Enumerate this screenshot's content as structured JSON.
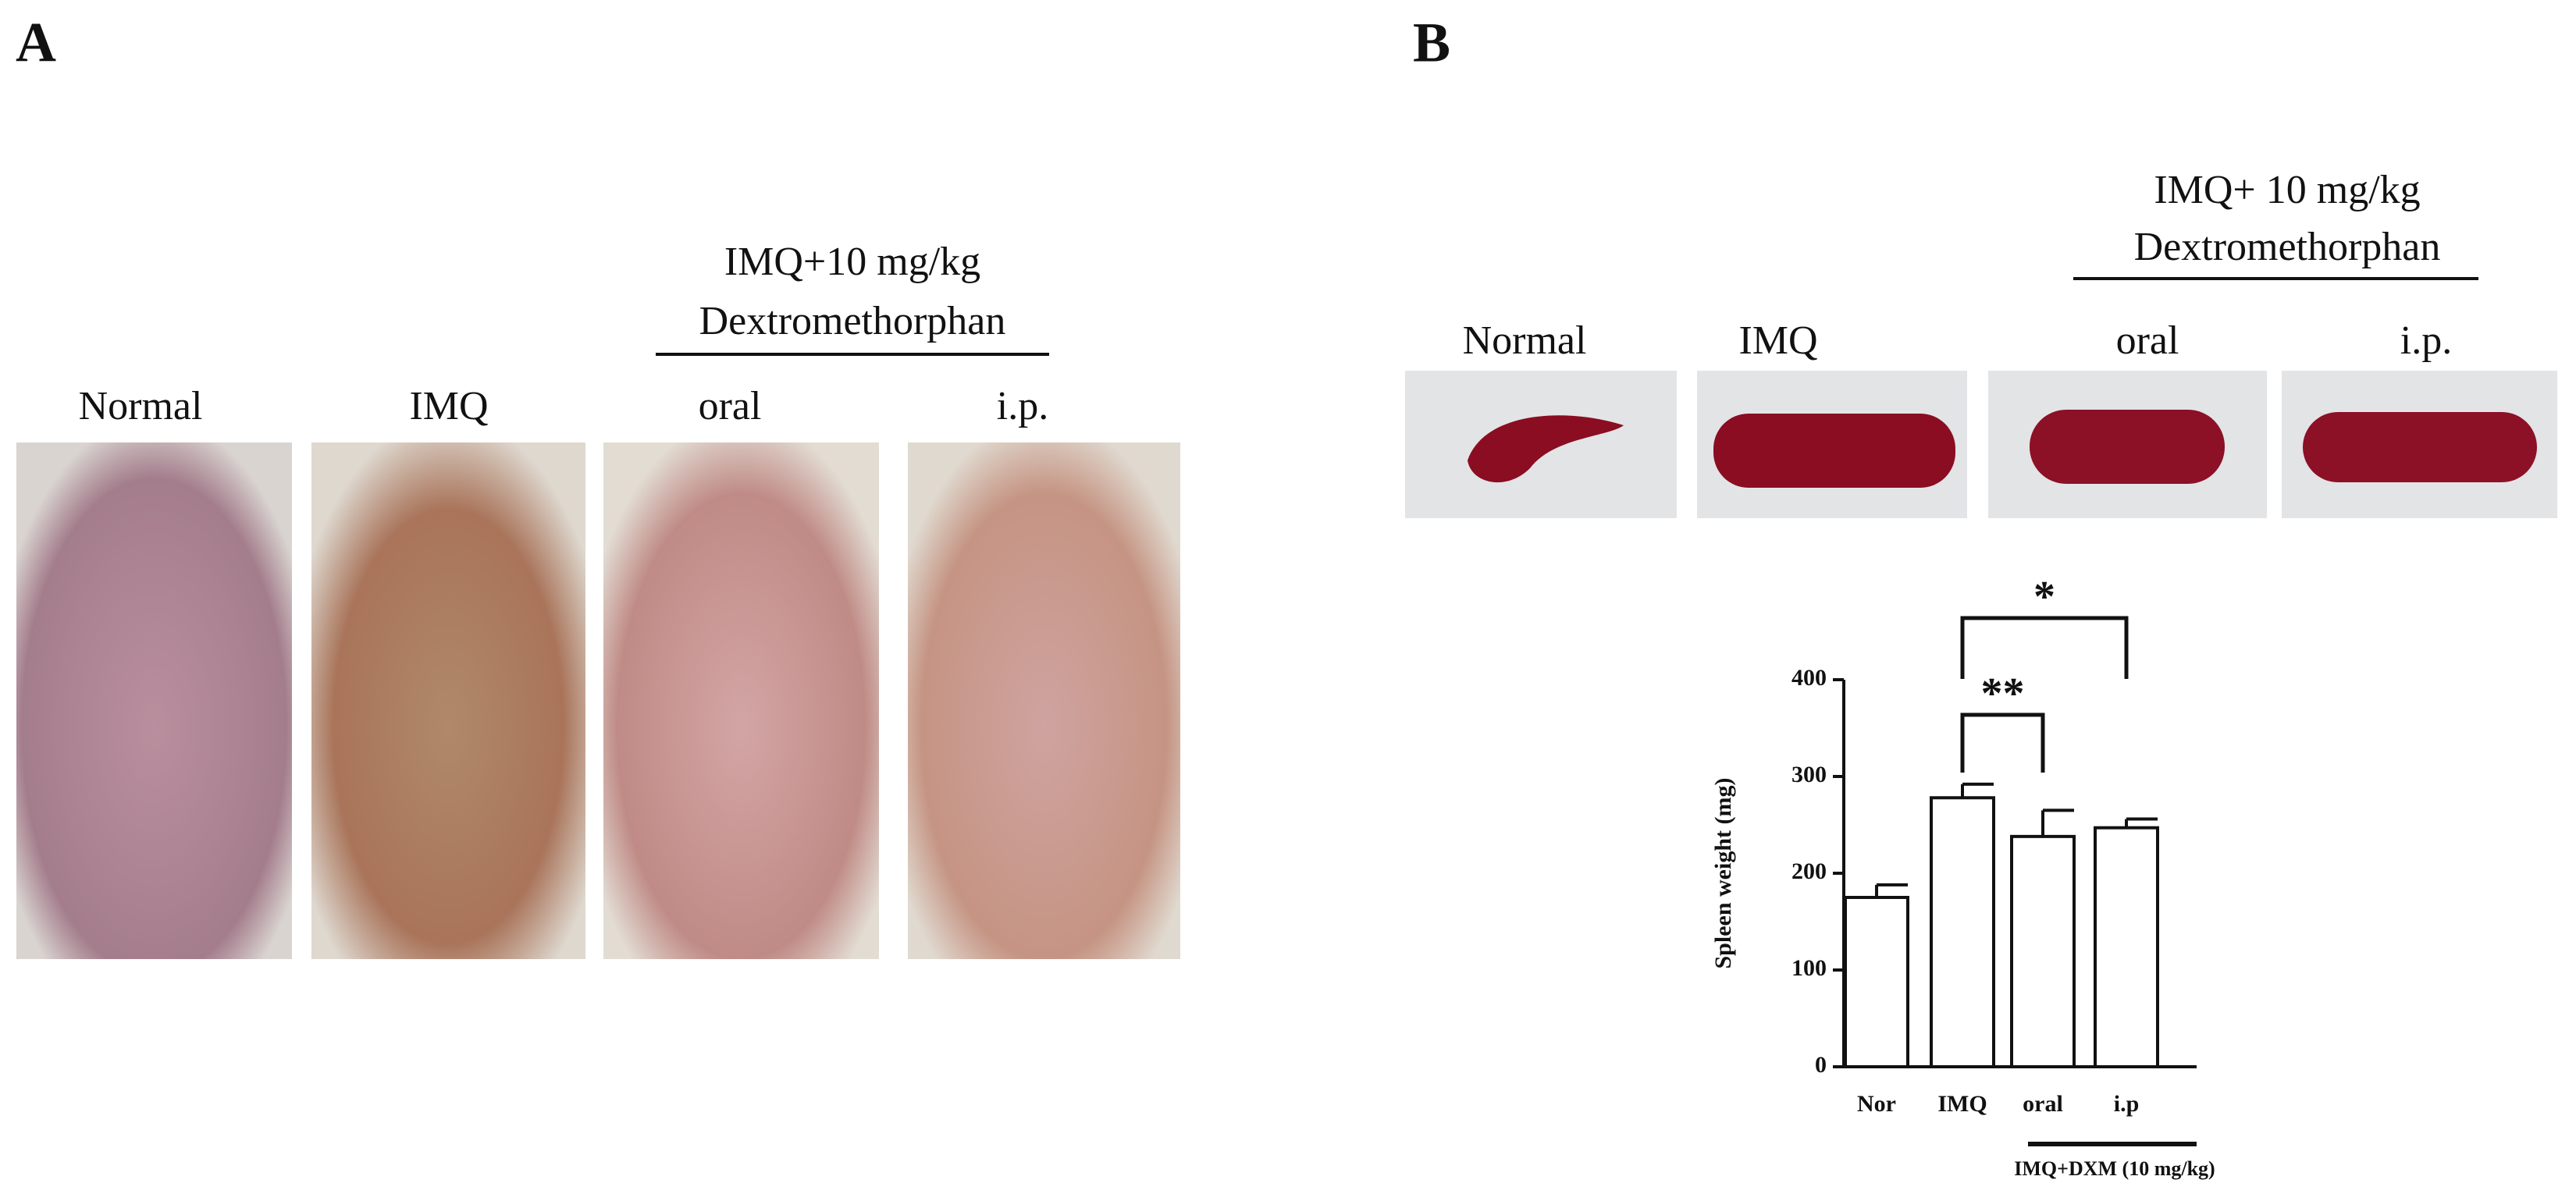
{
  "panel_a": {
    "label": "A",
    "group_header": [
      "IMQ+10 mg/kg",
      "Dextromethorphan"
    ],
    "photo_labels": [
      "Normal",
      "IMQ",
      "oral",
      "i.p."
    ]
  },
  "panel_b": {
    "label": "B",
    "group_header": [
      "IMQ+ 10 mg/kg",
      "Dextromethorphan"
    ],
    "photo_labels": [
      "Normal",
      "IMQ",
      "oral",
      "i.p."
    ]
  },
  "chart_data": {
    "type": "bar",
    "ylabel": "Spleen weight (mg)",
    "categories": [
      "Nor",
      "IMQ",
      "oral",
      "i.p"
    ],
    "values": [
      175,
      278,
      238,
      247
    ],
    "errors": [
      13,
      14,
      27,
      9
    ],
    "color": "#ffffff",
    "ylim": [
      0,
      400
    ],
    "yticks": [
      0,
      100,
      200,
      300,
      400
    ],
    "group_label": "IMQ+DXM (10 mg/kg)",
    "annotations": [
      "**",
      "*"
    ]
  }
}
